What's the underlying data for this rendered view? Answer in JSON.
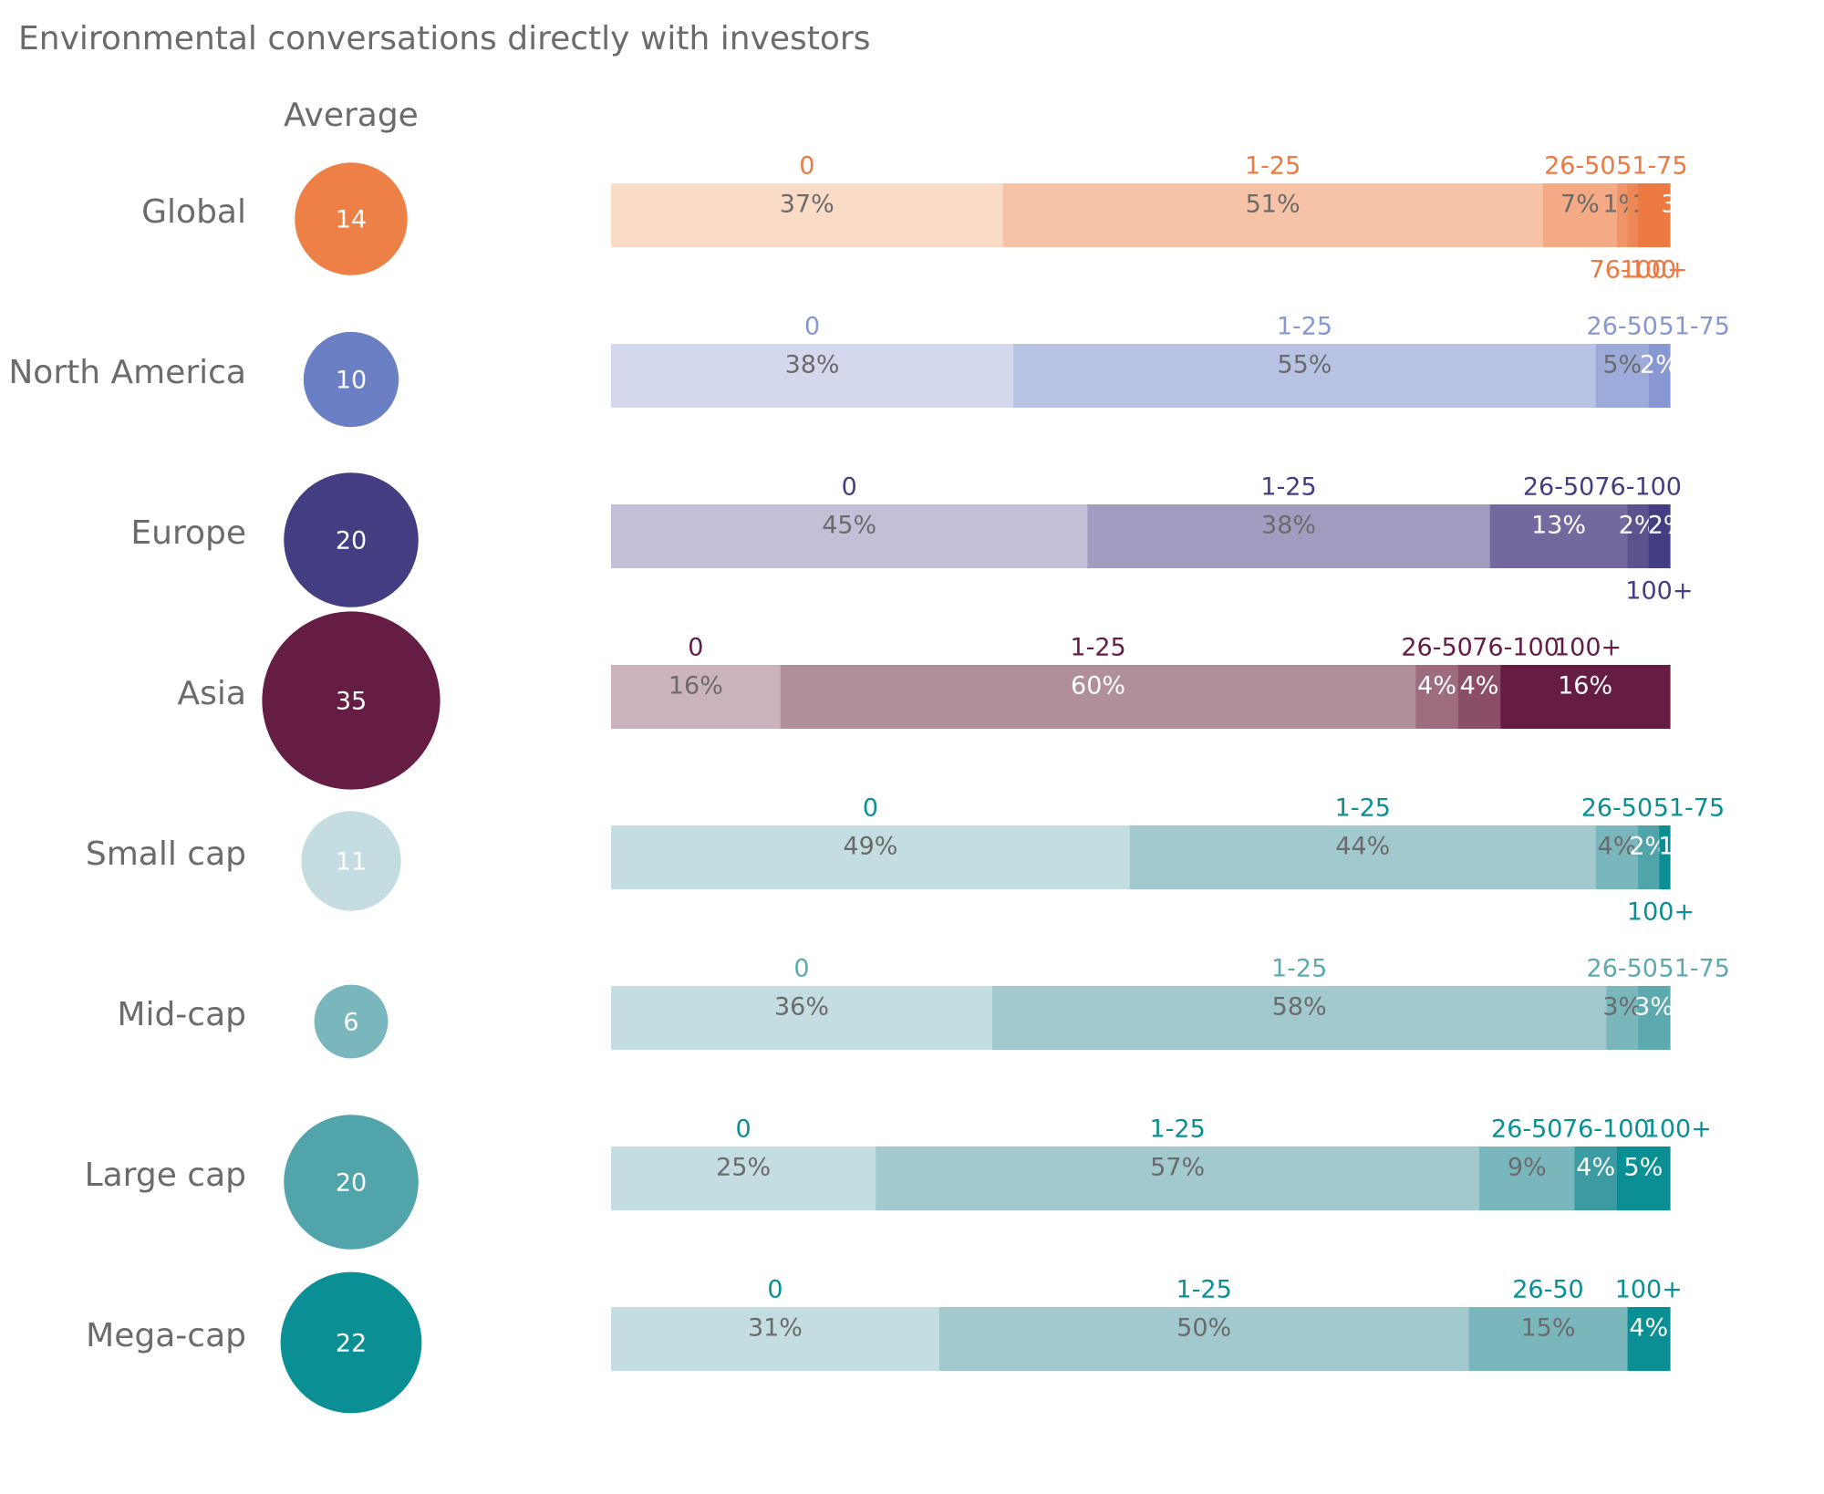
{
  "title": "Environmental conversations directly with investors",
  "average_heading": "Average",
  "chart_data": {
    "type": "bar",
    "orientation": "horizontal",
    "stacked": "100%",
    "unit": "%",
    "rows": [
      {
        "name": "Global",
        "average": 14,
        "color": "#ec8047",
        "segments": [
          {
            "label": "0",
            "value": 37,
            "color": "#fadbc6"
          },
          {
            "label": "1-25",
            "value": 51,
            "color": "#f7c3a6"
          },
          {
            "label": "26-50",
            "value": 7,
            "color": "#f4ab85"
          },
          {
            "label": "51-75",
            "value": 1,
            "color": "#f0956a"
          },
          {
            "label": "76-100",
            "value": 1,
            "color": "#ee8756"
          },
          {
            "label": "100+",
            "value": 3,
            "color": "#ec7a42"
          }
        ]
      },
      {
        "name": "North America",
        "average": 10,
        "color": "#6b7fc4",
        "segments": [
          {
            "label": "0",
            "value": 38,
            "color": "#d3d8ec"
          },
          {
            "label": "1-25",
            "value": 55,
            "color": "#b8c2e2"
          },
          {
            "label": "26-50",
            "value": 5,
            "color": "#9dabdb"
          },
          {
            "label": "51-75",
            "value": 2,
            "color": "#8797d1"
          }
        ]
      },
      {
        "name": "Europe",
        "average": 20,
        "color": "#433d82",
        "segments": [
          {
            "label": "0",
            "value": 45,
            "color": "#c4bfd6"
          },
          {
            "label": "1-25",
            "value": 38,
            "color": "#a39cc0"
          },
          {
            "label": "26-50",
            "value": 13,
            "color": "#73699f"
          },
          {
            "label": "76-100",
            "value": 2,
            "color": "#5b528e"
          },
          {
            "label": "100+",
            "value": 2,
            "color": "#433d82"
          }
        ]
      },
      {
        "name": "Asia",
        "average": 35,
        "color": "#661d43",
        "segments": [
          {
            "label": "0",
            "value": 16,
            "color": "#cbb3bd"
          },
          {
            "label": "1-25",
            "value": 60,
            "color": "#b08f99"
          },
          {
            "label": "26-50",
            "value": 4,
            "color": "#9d6d7f"
          },
          {
            "label": "76-100",
            "value": 4,
            "color": "#8a4e66"
          },
          {
            "label": "100+",
            "value": 16,
            "color": "#661d43"
          }
        ]
      },
      {
        "name": "Small cap",
        "average": 11,
        "color": "#c3dde1",
        "segments": [
          {
            "label": "0",
            "value": 49,
            "color": "#c3dde1"
          },
          {
            "label": "1-25",
            "value": 44,
            "color": "#a2c9cd"
          },
          {
            "label": "26-50",
            "value": 4,
            "color": "#7ab7bd"
          },
          {
            "label": "51-75",
            "value": 2,
            "color": "#51a4aa"
          },
          {
            "label": "100+",
            "value": 1,
            "color": "#0a8f94"
          }
        ]
      },
      {
        "name": "Mid-cap",
        "average": 6,
        "color": "#7ab7bd",
        "segments": [
          {
            "label": "0",
            "value": 36,
            "color": "#c3dde1"
          },
          {
            "label": "1-25",
            "value": 58,
            "color": "#a2c9cd"
          },
          {
            "label": "26-50",
            "value": 3,
            "color": "#7ab7bd"
          },
          {
            "label": "51-75",
            "value": 3,
            "color": "#5caab0"
          }
        ]
      },
      {
        "name": "Large cap",
        "average": 20,
        "color": "#51a4aa",
        "segments": [
          {
            "label": "0",
            "value": 25,
            "color": "#c3dde1"
          },
          {
            "label": "1-25",
            "value": 57,
            "color": "#a2c9cd"
          },
          {
            "label": "26-50",
            "value": 9,
            "color": "#7ab7bd"
          },
          {
            "label": "76-100",
            "value": 4,
            "color": "#3c9ba2"
          },
          {
            "label": "100+",
            "value": 5,
            "color": "#0a8f94"
          }
        ]
      },
      {
        "name": "Mega-cap",
        "average": 22,
        "color": "#0a8f94",
        "segments": [
          {
            "label": "0",
            "value": 31,
            "color": "#c3dde1"
          },
          {
            "label": "1-25",
            "value": 50,
            "color": "#a2c9cd"
          },
          {
            "label": "26-50",
            "value": 15,
            "color": "#7ab7bd"
          },
          {
            "label": "100+",
            "value": 4,
            "color": "#0a8f94"
          }
        ]
      }
    ]
  }
}
